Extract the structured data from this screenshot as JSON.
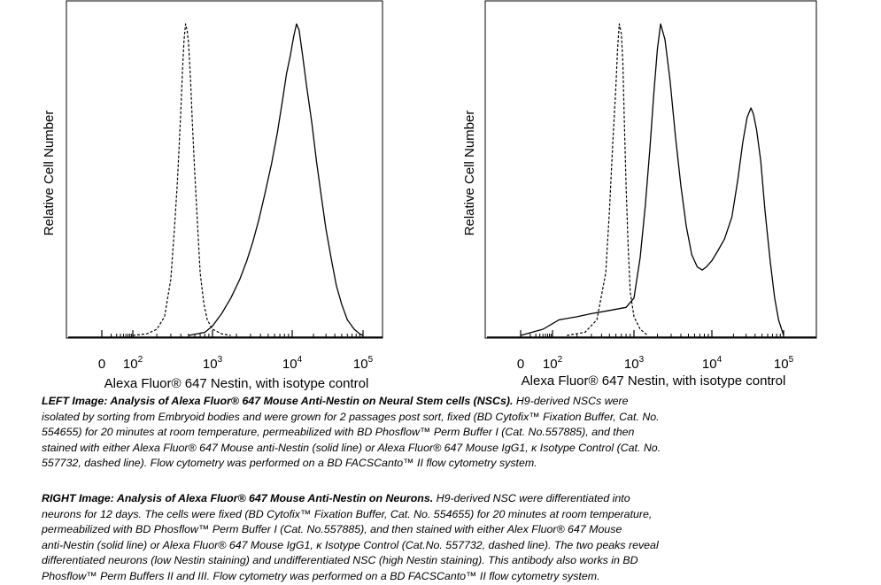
{
  "chart_data": [
    {
      "type": "histogram",
      "panel": "left",
      "xlabel": "Alexa Fluor® 647 Nestin, with isotype control",
      "ylabel": "Relative Cell Number",
      "xscale": "biexponential",
      "xticks": [
        {
          "value": 0,
          "base": "0",
          "exp": ""
        },
        {
          "value": 100,
          "base": "10",
          "exp": "2"
        },
        {
          "value": 1000,
          "base": "10",
          "exp": "3"
        },
        {
          "value": 10000,
          "base": "10",
          "exp": "4"
        },
        {
          "value": 100000,
          "base": "10",
          "exp": "5"
        }
      ],
      "ylim": [
        0,
        100
      ],
      "series": [
        {
          "style": "dashed",
          "points": [
            [
              100,
              0
            ],
            [
              150,
              0.5
            ],
            [
              200,
              2
            ],
            [
              250,
              6
            ],
            [
              300,
              18
            ],
            [
              330,
              33
            ],
            [
              360,
              48
            ],
            [
              380,
              60
            ],
            [
              400,
              72
            ],
            [
              420,
              85
            ],
            [
              440,
              95
            ],
            [
              460,
              100
            ],
            [
              480,
              98
            ],
            [
              500,
              94
            ],
            [
              530,
              82
            ],
            [
              560,
              68
            ],
            [
              600,
              52
            ],
            [
              650,
              35
            ],
            [
              700,
              20
            ],
            [
              780,
              10
            ],
            [
              860,
              5
            ],
            [
              1000,
              2
            ],
            [
              1300,
              0.5
            ],
            [
              1700,
              0
            ]
          ]
        },
        {
          "style": "solid",
          "points": [
            [
              500,
              0
            ],
            [
              800,
              1
            ],
            [
              1000,
              3
            ],
            [
              1300,
              7
            ],
            [
              1700,
              12
            ],
            [
              2200,
              18
            ],
            [
              2700,
              24
            ],
            [
              3200,
              30
            ],
            [
              3800,
              37
            ],
            [
              4500,
              45
            ],
            [
              5500,
              55
            ],
            [
              6500,
              65
            ],
            [
              7500,
              75
            ],
            [
              8500,
              84
            ],
            [
              9500,
              90
            ],
            [
              10500,
              96
            ],
            [
              11500,
              100
            ],
            [
              12500,
              98
            ],
            [
              14000,
              90
            ],
            [
              16000,
              80
            ],
            [
              19000,
              68
            ],
            [
              22000,
              56
            ],
            [
              26000,
              44
            ],
            [
              30000,
              34
            ],
            [
              36000,
              24
            ],
            [
              42000,
              16
            ],
            [
              50000,
              10
            ],
            [
              60000,
              5
            ],
            [
              75000,
              2
            ],
            [
              90000,
              0.5
            ],
            [
              100000,
              0
            ]
          ]
        }
      ]
    },
    {
      "type": "histogram",
      "panel": "right",
      "xlabel": "Alexa Fluor® 647 Nestin, with isotype control",
      "ylabel": "Relative Cell Number",
      "xscale": "biexponential",
      "xticks": [
        {
          "value": 0,
          "base": "0",
          "exp": ""
        },
        {
          "value": 100,
          "base": "10",
          "exp": "2"
        },
        {
          "value": 1000,
          "base": "10",
          "exp": "3"
        },
        {
          "value": 10000,
          "base": "10",
          "exp": "4"
        },
        {
          "value": 100000,
          "base": "10",
          "exp": "5"
        }
      ],
      "ylim": [
        0,
        100
      ],
      "series": [
        {
          "style": "dashed",
          "points": [
            [
              150,
              0
            ],
            [
              250,
              1
            ],
            [
              350,
              5
            ],
            [
              450,
              20
            ],
            [
              500,
              40
            ],
            [
              550,
              62
            ],
            [
              600,
              80
            ],
            [
              630,
              92
            ],
            [
              660,
              100
            ],
            [
              700,
              97
            ],
            [
              730,
              88
            ],
            [
              760,
              70
            ],
            [
              800,
              48
            ],
            [
              850,
              28
            ],
            [
              900,
              14
            ],
            [
              1000,
              6
            ],
            [
              1200,
              2
            ],
            [
              1500,
              0
            ]
          ]
        },
        {
          "style": "solid",
          "points": [
            [
              0,
              0
            ],
            [
              60,
              2
            ],
            [
              120,
              5
            ],
            [
              200,
              6
            ],
            [
              300,
              7
            ],
            [
              500,
              8
            ],
            [
              800,
              9
            ],
            [
              1000,
              12
            ],
            [
              1200,
              25
            ],
            [
              1400,
              42
            ],
            [
              1600,
              60
            ],
            [
              1800,
              78
            ],
            [
              2000,
              92
            ],
            [
              2200,
              100
            ],
            [
              2500,
              95
            ],
            [
              2900,
              82
            ],
            [
              3400,
              64
            ],
            [
              4000,
              48
            ],
            [
              4700,
              35
            ],
            [
              5500,
              26
            ],
            [
              6500,
              22
            ],
            [
              7500,
              21
            ],
            [
              8500,
              22
            ],
            [
              10000,
              24
            ],
            [
              12000,
              27
            ],
            [
              15000,
              31
            ],
            [
              19000,
              38
            ],
            [
              23000,
              50
            ],
            [
              27000,
              62
            ],
            [
              31000,
              70
            ],
            [
              35000,
              73
            ],
            [
              38000,
              71
            ],
            [
              42000,
              66
            ],
            [
              48000,
              56
            ],
            [
              55000,
              40
            ],
            [
              65000,
              24
            ],
            [
              75000,
              12
            ],
            [
              85000,
              5
            ],
            [
              100000,
              0
            ]
          ]
        }
      ]
    }
  ],
  "captions": {
    "left": {
      "title": "LEFT Image: Analysis of Alexa Fluor® 647 Mouse Anti-Nestin on Neural Stem cells (NSCs).",
      "lines": [
        " H9-derived NSCs were",
        "isolated by sorting from Embryoid bodies and were grown for 2 passages post sort, fixed (BD Cytofix™ Fixation Buffer, Cat. No.",
        "554655) for 20 minutes at room temperature, permeabilized with BD Phosflow™ Perm Buffer I (Cat. No.557885), and then",
        "stained with either Alexa Fluor® 647 Mouse anti-Nestin (solid line) or Alexa Fluor® 647 Mouse IgG1, κ Isotype Control (Cat. No.",
        "557732, dashed line). Flow cytometry was performed on a BD FACSCanto™ II flow cytometry system."
      ]
    },
    "right": {
      "title": "RIGHT Image: Analysis of Alexa Fluor® 647 Mouse Anti-Nestin on Neurons.",
      "lines": [
        " H9-derived NSC were differentiated  into",
        "neurons for 12 days. The cells were fixed (BD Cytofix™ Fixation Buffer, Cat. No. 554655) for 20 minutes at room temperature,",
        "permeabilized with BD Phosflow™ Perm Buffer I (Cat. No.557885), and then stained with either Alex Fluor® 647 Mouse",
        "anti-Nestin (solid line) or Alexa Fluor® 647 Mouse IgG1, κ Isotype Control (Cat.No. 557732, dashed line). The two peaks reveal",
        "differentiated neurons (low Nestin staining) and undifferentiated NSC (high Nestin staining).  This antibody also works in BD",
        "Phosflow™ Perm Buffers II and III. Flow cytometry was performed on a BD FACSCanto™ II flow cytometry system."
      ]
    }
  }
}
